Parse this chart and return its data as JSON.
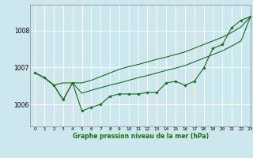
{
  "title": "Graphe pression niveau de la mer (hPa)",
  "background_color": "#cce8ee",
  "grid_color": "#ffffff",
  "line_color": "#1a6b1a",
  "xlim": [
    -0.5,
    23
  ],
  "ylim": [
    1005.4,
    1008.7
  ],
  "yticks": [
    1006,
    1007,
    1008
  ],
  "xticks": [
    0,
    1,
    2,
    3,
    4,
    5,
    6,
    7,
    8,
    9,
    10,
    11,
    12,
    13,
    14,
    15,
    16,
    17,
    18,
    19,
    20,
    21,
    22,
    23
  ],
  "series_main": [
    1006.85,
    1006.72,
    1006.52,
    1006.12,
    1006.58,
    1005.82,
    1005.92,
    1006.0,
    1006.22,
    1006.28,
    1006.28,
    1006.28,
    1006.32,
    1006.32,
    1006.58,
    1006.62,
    1006.52,
    1006.62,
    1006.98,
    1007.52,
    1007.62,
    1008.08,
    1008.28,
    1008.38
  ],
  "series_upper": [
    1006.85,
    1006.72,
    1006.52,
    1006.58,
    1006.58,
    1006.58,
    1006.65,
    1006.75,
    1006.85,
    1006.95,
    1007.02,
    1007.08,
    1007.15,
    1007.22,
    1007.28,
    1007.35,
    1007.42,
    1007.52,
    1007.62,
    1007.72,
    1007.82,
    1007.95,
    1008.1,
    1008.38
  ],
  "series_lower": [
    1006.85,
    1006.72,
    1006.52,
    1006.12,
    1006.58,
    1006.3,
    1006.38,
    1006.45,
    1006.52,
    1006.58,
    1006.65,
    1006.72,
    1006.78,
    1006.85,
    1006.92,
    1006.98,
    1007.05,
    1007.15,
    1007.25,
    1007.35,
    1007.45,
    1007.58,
    1007.72,
    1008.38
  ],
  "xlabel_fontsize": 5.5,
  "ytick_fontsize": 5.5,
  "xtick_fontsize": 4.2,
  "linewidth": 0.8,
  "marker_size": 1.8
}
